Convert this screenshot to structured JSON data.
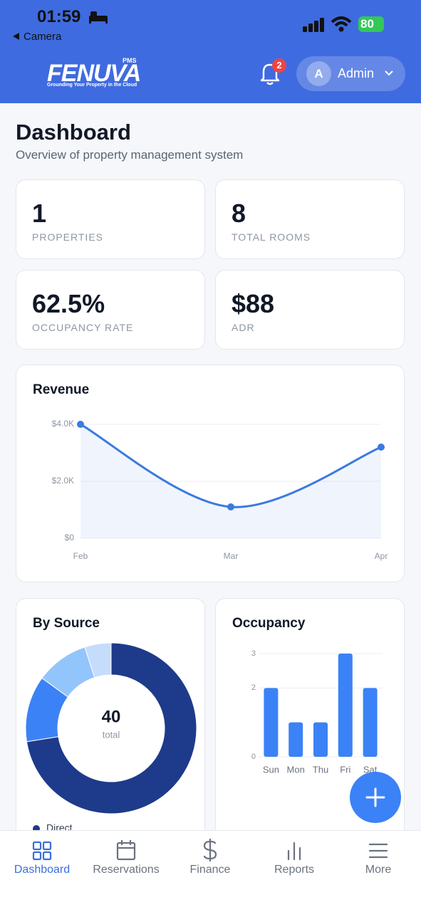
{
  "status_bar": {
    "time": "01:59",
    "back": "Camera",
    "battery": "80"
  },
  "header": {
    "logo": "FENUVA",
    "logo_badge": "PMS",
    "tagline": "Grounding Your Property in the Cloud",
    "notifications": "2",
    "user_initial": "A",
    "user_name": "Admin"
  },
  "page": {
    "title": "Dashboard",
    "subtitle": "Overview of property management system"
  },
  "stats": [
    {
      "value": "1",
      "label": "PROPERTIES"
    },
    {
      "value": "8",
      "label": "TOTAL ROOMS"
    },
    {
      "value": "62.5%",
      "label": "OCCUPANCY RATE"
    },
    {
      "value": "$88",
      "label": "ADR"
    }
  ],
  "chart_data": [
    {
      "type": "line",
      "title": "Revenue",
      "categories": [
        "Feb",
        "Mar",
        "Apr"
      ],
      "values": [
        4000,
        1100,
        3200
      ],
      "color": "#3b7ae0",
      "ylim": [
        0,
        4000
      ],
      "yticks": [
        {
          "value": 0,
          "label": "$0"
        },
        {
          "value": 2000,
          "label": "$2.0K"
        },
        {
          "value": 4000,
          "label": "$4.0K"
        }
      ],
      "grid": true
    },
    {
      "type": "pie",
      "title": "By Source",
      "total_value": "40",
      "total_label": "total",
      "categories": [
        "Direct",
        null,
        null,
        null
      ],
      "values": [
        29,
        5,
        4,
        2
      ],
      "colors": [
        "#1e3a8a",
        "#3b82f6",
        "#93c5fd",
        "#c5dcfb"
      ]
    },
    {
      "type": "bar",
      "title": "Occupancy",
      "categories": [
        "Sun",
        "Mon",
        "Thu",
        "Fri",
        "Sat"
      ],
      "values": [
        2,
        1,
        1,
        3,
        2
      ],
      "color": "#3b82f6",
      "ylim": [
        0,
        3
      ],
      "yticks": [
        0,
        2,
        3
      ],
      "grid": true
    }
  ],
  "nav": {
    "items": [
      "Dashboard",
      "Reservations",
      "Finance",
      "Reports",
      "More"
    ],
    "active": 0
  }
}
